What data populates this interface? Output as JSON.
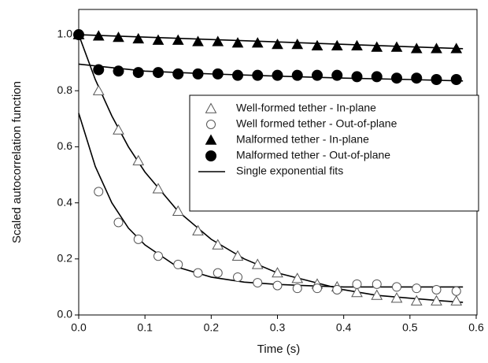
{
  "chart_data": {
    "type": "scatter",
    "x_label": "Time (s)",
    "y_label": "Scaled autocorrelation function",
    "xlim": [
      0,
      0.6
    ],
    "ylim": [
      0,
      1.09
    ],
    "xticks": [
      {
        "value": 0,
        "label": "0.0"
      },
      0.1,
      0.2,
      0.3,
      0.4,
      0.5,
      0.6
    ],
    "yticks": [
      {
        "value": 0,
        "label": "0.0"
      },
      0.2,
      0.4,
      0.6,
      0.8,
      {
        "value": 1,
        "label": "1.0"
      }
    ],
    "legend": "upper right",
    "x": [
      0,
      0.03,
      0.06,
      0.09,
      0.12,
      0.15,
      0.18,
      0.21,
      0.24,
      0.27,
      0.3,
      0.33,
      0.36,
      0.39,
      0.42,
      0.45,
      0.48,
      0.51,
      0.54,
      0.57
    ],
    "series": [
      {
        "name": "Well-formed tether - In-plane",
        "marker": "triangle",
        "filled": false,
        "color": "#555555",
        "values": [
          1.0,
          0.8,
          0.66,
          0.55,
          0.45,
          0.37,
          0.3,
          0.25,
          0.21,
          0.18,
          0.15,
          0.13,
          0.11,
          0.1,
          0.08,
          0.07,
          0.06,
          0.05,
          0.05,
          0.05
        ]
      },
      {
        "name": "Well formed tether - Out-of-plane",
        "marker": "circle",
        "filled": false,
        "color": "#555555",
        "values": [
          1.0,
          0.44,
          0.33,
          0.27,
          0.21,
          0.18,
          0.15,
          0.15,
          0.135,
          0.115,
          0.105,
          0.095,
          0.095,
          0.09,
          0.11,
          0.11,
          0.1,
          0.095,
          0.09,
          0.085
        ]
      },
      {
        "name": "Malformed tether - In-plane",
        "marker": "triangle",
        "filled": true,
        "color": "#000000",
        "values": [
          1.0,
          0.995,
          0.99,
          0.985,
          0.98,
          0.98,
          0.975,
          0.975,
          0.97,
          0.97,
          0.965,
          0.965,
          0.96,
          0.96,
          0.96,
          0.955,
          0.955,
          0.95,
          0.95,
          0.95
        ]
      },
      {
        "name": "Malformed tether - Out-of-plane",
        "marker": "circle",
        "filled": true,
        "color": "#000000",
        "values": [
          1.0,
          0.875,
          0.87,
          0.865,
          0.865,
          0.86,
          0.86,
          0.86,
          0.855,
          0.855,
          0.855,
          0.855,
          0.855,
          0.855,
          0.85,
          0.85,
          0.845,
          0.845,
          0.84,
          0.84
        ]
      }
    ],
    "fits": {
      "name": "Single exponential fits",
      "color": "#000000",
      "curves": [
        {
          "x": [
            0,
            0.025,
            0.05,
            0.075,
            0.1,
            0.15,
            0.2,
            0.25,
            0.3,
            0.35,
            0.4,
            0.45,
            0.5,
            0.55,
            0.58
          ],
          "values": [
            1.0,
            0.84,
            0.71,
            0.6,
            0.51,
            0.37,
            0.27,
            0.2,
            0.15,
            0.12,
            0.09,
            0.07,
            0.06,
            0.05,
            0.045
          ]
        },
        {
          "x": [
            0,
            0.025,
            0.05,
            0.075,
            0.1,
            0.15,
            0.2,
            0.25,
            0.3,
            0.35,
            0.4,
            0.58
          ],
          "values": [
            0.72,
            0.53,
            0.4,
            0.31,
            0.25,
            0.17,
            0.135,
            0.117,
            0.109,
            0.104,
            0.1,
            0.1
          ]
        },
        {
          "x": [
            0,
            0.58
          ],
          "values": [
            1.0,
            0.95
          ]
        },
        {
          "x": [
            0,
            0.1,
            0.2,
            0.3,
            0.4,
            0.5,
            0.58
          ],
          "values": [
            0.895,
            0.87,
            0.86,
            0.852,
            0.845,
            0.84,
            0.835
          ]
        }
      ]
    }
  }
}
